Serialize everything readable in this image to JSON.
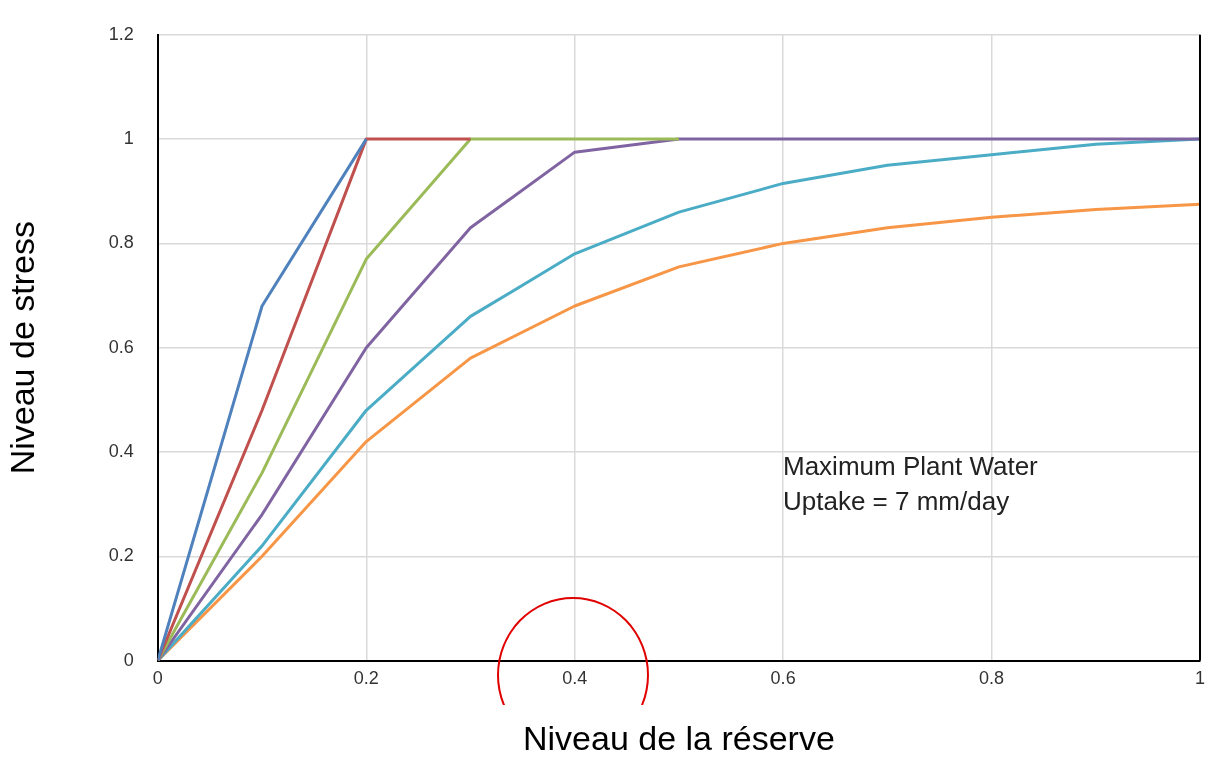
{
  "chart_data": {
    "type": "line",
    "xlabel": "Niveau de la réserve",
    "ylabel": "Niveau de stress",
    "x": [
      0,
      0.1,
      0.2,
      0.3,
      0.4,
      0.5,
      0.6,
      0.7,
      0.8,
      0.9,
      1
    ],
    "xlim": [
      0,
      1
    ],
    "xticks": [
      0,
      0.2,
      0.4,
      0.6,
      0.8,
      1
    ],
    "ylim": [
      0,
      1.2
    ],
    "yticks": [
      0,
      0.2,
      0.4,
      0.6,
      0.8,
      1,
      1.2
    ],
    "grid": true,
    "legend": false,
    "marker": "none",
    "line_style": "solid",
    "annotations": [
      "Maximum Plant Water\nUptake = 7 mm/day"
    ],
    "series": [
      {
        "color": "#4f81bd",
        "values": [
          0,
          0.68,
          1,
          null,
          null,
          null,
          null,
          null,
          null,
          null,
          null
        ]
      },
      {
        "color": "#c0504d",
        "values": [
          0,
          0.48,
          1,
          1,
          null,
          null,
          null,
          null,
          null,
          null,
          null
        ]
      },
      {
        "color": "#9bbb59",
        "values": [
          0,
          0.36,
          0.77,
          1,
          1,
          1,
          null,
          null,
          null,
          null,
          null
        ]
      },
      {
        "color": "#8064a2",
        "values": [
          0,
          0.28,
          0.6,
          0.83,
          0.975,
          1,
          1,
          1,
          1,
          1,
          1
        ]
      },
      {
        "color": "#4bacc6",
        "values": [
          0,
          0.22,
          0.48,
          0.66,
          0.78,
          0.86,
          0.915,
          0.95,
          0.97,
          0.99,
          1
        ]
      },
      {
        "color": "#f79646",
        "values": [
          0,
          0.2,
          0.42,
          0.58,
          0.68,
          0.755,
          0.8,
          0.83,
          0.85,
          0.865,
          0.875
        ]
      }
    ]
  }
}
